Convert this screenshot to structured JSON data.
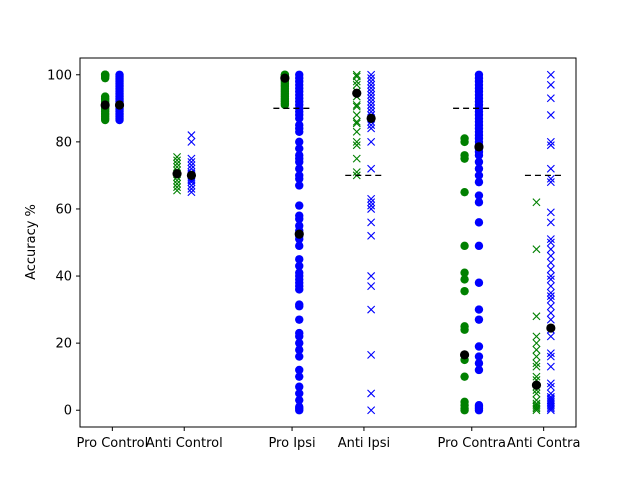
{
  "chart_data": {
    "type": "scatter",
    "title": "",
    "xlabel": "",
    "ylabel": "Accuracy %",
    "ylim": [
      -5,
      105
    ],
    "y_ticks": [
      "0",
      "20",
      "40",
      "60",
      "80",
      "100"
    ],
    "grid": false,
    "categories": [
      "Pro Control",
      "Anti Control",
      "Pro Ipsi",
      "Anti Ipsi",
      "Pro Contra",
      "Anti Contra"
    ],
    "colors": {
      "green": "#008000",
      "blue": "#0000ff",
      "mean": "#000000"
    },
    "groups": [
      {
        "label": "Pro Control",
        "x": 1,
        "marker": "circle",
        "green": [
          100,
          100,
          100,
          100,
          99.7,
          99.5,
          99,
          93.5,
          93,
          92.5,
          92,
          91.5,
          91,
          90.5,
          90,
          89.5,
          89,
          88.5,
          88,
          87.5,
          87,
          86.5
        ],
        "blue": [
          100,
          99.5,
          99,
          98.5,
          98,
          97.5,
          97,
          96.5,
          96,
          95.5,
          95,
          94.5,
          94,
          93.5,
          93,
          92.5,
          92,
          91.5,
          91,
          90.5,
          90,
          89.5,
          89,
          88.5,
          88,
          87.5,
          87,
          86.5
        ],
        "mean_green": 91,
        "mean_blue": 91,
        "threshold": null
      },
      {
        "label": "Anti Control",
        "x": 2,
        "marker": "x",
        "green": [
          75.5,
          74.5,
          73.5,
          72.5,
          71.5,
          70.5,
          69.5,
          68.5,
          67.5,
          66.5,
          65.5
        ],
        "blue": [
          82,
          80,
          75,
          74,
          73,
          72,
          71,
          70.5,
          70,
          69.5,
          69,
          68.5,
          68,
          67,
          66,
          65
        ],
        "mean_green": 70.5,
        "mean_blue": 70,
        "threshold": null
      },
      {
        "label": "Pro Ipsi",
        "x": 3.5,
        "marker": "circle",
        "green": [
          100,
          100,
          99.5,
          99,
          98.5,
          98,
          97.5,
          97,
          96.5,
          96,
          95.5,
          95,
          94.5,
          94,
          93.5,
          93,
          92.5,
          92,
          91.5,
          91
        ],
        "blue": [
          100,
          99,
          98,
          97,
          96,
          95,
          94,
          93,
          92,
          91,
          90,
          89,
          88,
          87,
          85,
          84,
          83,
          80,
          78,
          76,
          75,
          74,
          72,
          70,
          69,
          67,
          61,
          58,
          57,
          55,
          53.5,
          52,
          51,
          49,
          45,
          43,
          41,
          40,
          39,
          38,
          37,
          36,
          31.5,
          31,
          27,
          23,
          22,
          20,
          18,
          16,
          12,
          10,
          7,
          5,
          3,
          1,
          0.5,
          0
        ],
        "mean_green": 99,
        "mean_blue": 52.5,
        "threshold": 90
      },
      {
        "label": "Anti Ipsi",
        "x": 4.5,
        "marker": "x",
        "green": [
          100,
          99.5,
          98,
          97,
          95,
          93.5,
          91,
          90.5,
          88,
          86,
          85.5,
          83,
          80,
          79,
          75,
          71,
          70
        ],
        "blue": [
          100,
          99,
          98,
          97,
          96,
          95,
          94,
          93,
          92,
          91,
          90,
          89,
          88,
          87,
          86,
          85,
          84,
          80,
          72,
          63,
          62,
          61,
          60,
          56,
          52,
          40,
          37,
          30,
          16.5,
          5,
          0
        ],
        "mean_green": 94.5,
        "mean_blue": 87,
        "threshold": 70
      },
      {
        "label": "Pro Contra",
        "x": 6,
        "marker": "circle",
        "green": [
          81,
          80,
          76,
          75,
          65,
          49,
          41,
          39,
          35.5,
          25,
          24,
          16.5,
          15,
          10,
          2.5,
          1.5,
          0.5,
          0
        ],
        "blue": [
          100,
          99,
          98,
          97,
          96,
          95,
          94,
          93,
          92,
          91,
          90,
          89,
          88,
          87,
          86,
          85,
          84,
          83,
          82,
          81,
          80,
          79,
          78,
          77,
          76,
          74,
          72,
          70,
          68,
          64,
          62,
          56,
          49,
          38,
          30,
          27,
          19,
          16,
          14,
          12,
          1.5,
          1,
          0.5,
          0
        ],
        "mean_green": 16.5,
        "mean_blue": 78.5,
        "threshold": 90
      },
      {
        "label": "Anti Contra",
        "x": 7,
        "marker": "x",
        "green": [
          62,
          48,
          28,
          22,
          20,
          18,
          16,
          14,
          13,
          10,
          9,
          7,
          6,
          5,
          3,
          2,
          1.5,
          1,
          0.5,
          0
        ],
        "blue": [
          100,
          97,
          93,
          88,
          80,
          79,
          72,
          69,
          68,
          59,
          56,
          51,
          50,
          48,
          46,
          44,
          42,
          40,
          39,
          37,
          35,
          34,
          33,
          31,
          29,
          27,
          24,
          22,
          17,
          16,
          13,
          8,
          7,
          5,
          4,
          3.5,
          3,
          2.5,
          2,
          1.5,
          1,
          0.5,
          0
        ],
        "mean_green": 7.5,
        "mean_blue": 24.5,
        "threshold": 70
      }
    ]
  }
}
